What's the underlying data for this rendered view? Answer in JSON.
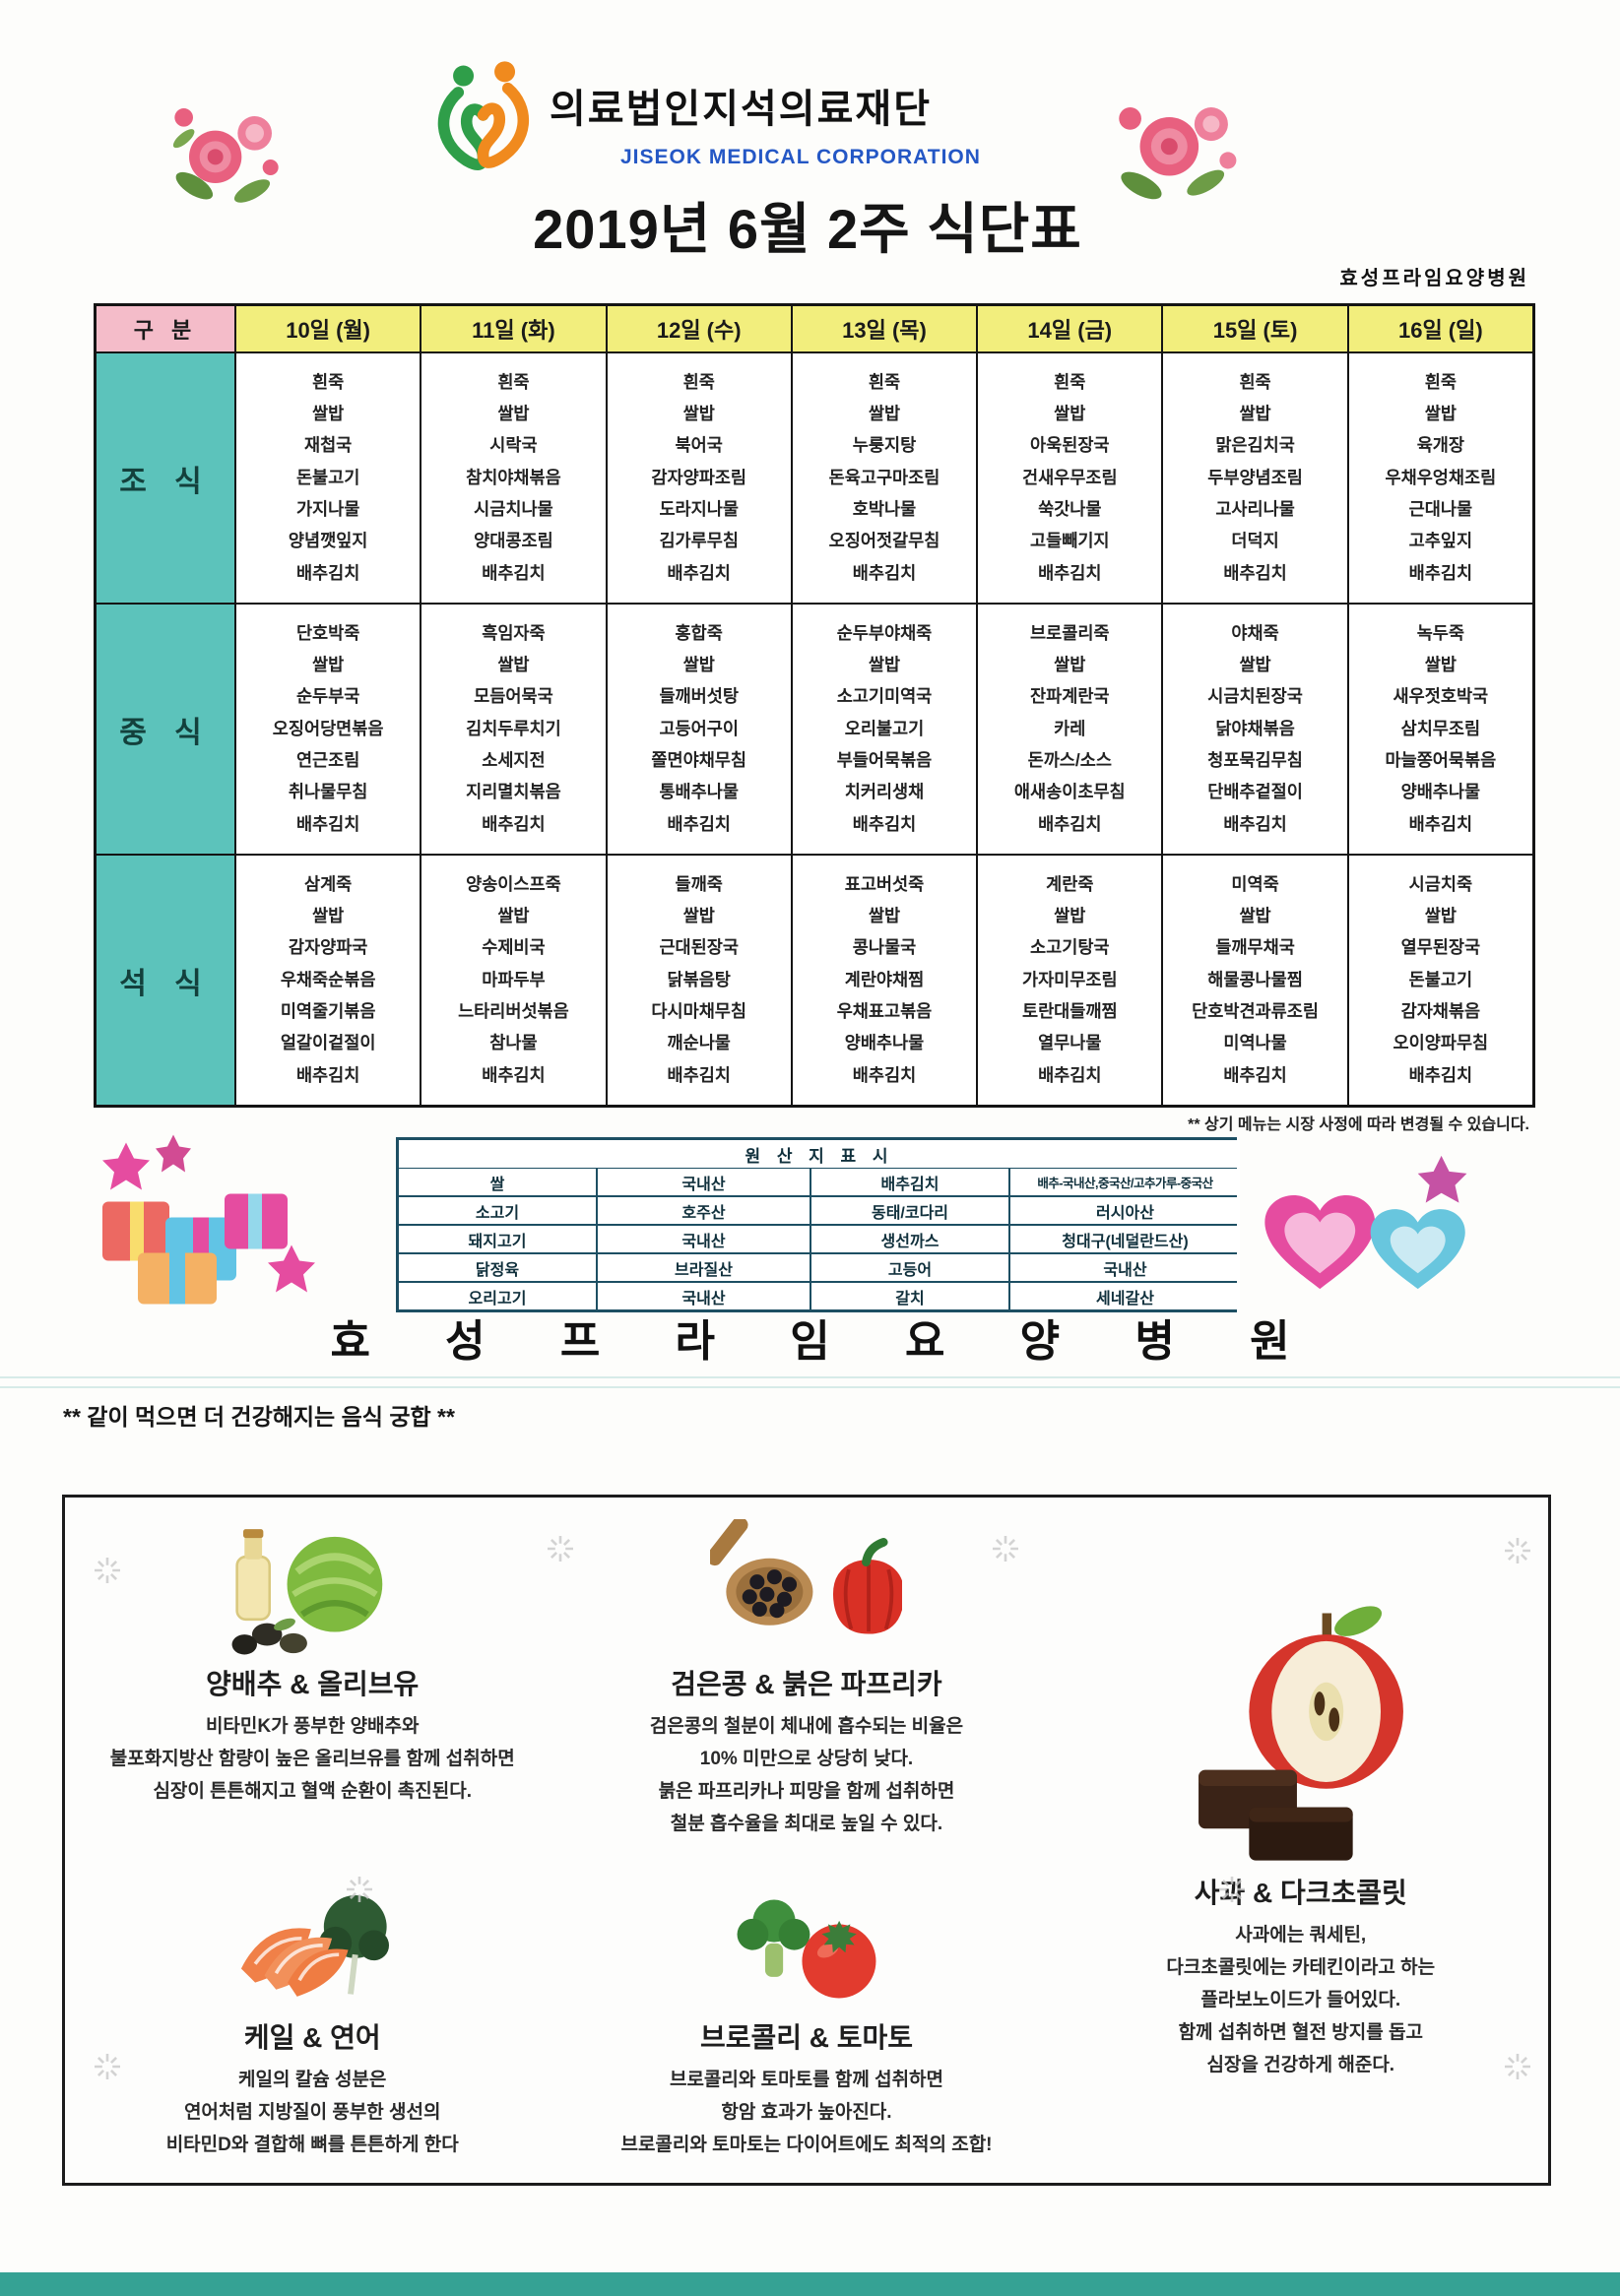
{
  "header": {
    "org_name": "의료법인지석의료재단",
    "org_name_en": "JISEOK MEDICAL CORPORATION",
    "title": "2019년 6월 2주 식단표",
    "hospital_label": "효성프라임요양병원"
  },
  "menu": {
    "corner": "구 분",
    "day_headers": [
      "10일 (월)",
      "11일 (화)",
      "12일 (수)",
      "13일 (목)",
      "14일 (금)",
      "15일 (토)",
      "16일 (일)"
    ],
    "rows": [
      {
        "label": "조 식",
        "cols": [
          [
            "흰죽",
            "쌀밥",
            "재첩국",
            "돈불고기",
            "가지나물",
            "양념깻잎지",
            "배추김치"
          ],
          [
            "흰죽",
            "쌀밥",
            "시락국",
            "참치야채볶음",
            "시금치나물",
            "양대콩조림",
            "배추김치"
          ],
          [
            "흰죽",
            "쌀밥",
            "북어국",
            "감자양파조림",
            "도라지나물",
            "김가루무침",
            "배추김치"
          ],
          [
            "흰죽",
            "쌀밥",
            "누룽지탕",
            "돈육고구마조림",
            "호박나물",
            "오징어젓갈무침",
            "배추김치"
          ],
          [
            "흰죽",
            "쌀밥",
            "아욱된장국",
            "건새우무조림",
            "쑥갓나물",
            "고들빼기지",
            "배추김치"
          ],
          [
            "흰죽",
            "쌀밥",
            "맑은김치국",
            "두부양념조림",
            "고사리나물",
            "더덕지",
            "배추김치"
          ],
          [
            "흰죽",
            "쌀밥",
            "육개장",
            "우채우엉채조림",
            "근대나물",
            "고추잎지",
            "배추김치"
          ]
        ]
      },
      {
        "label": "중 식",
        "cols": [
          [
            "단호박죽",
            "쌀밥",
            "순두부국",
            "오징어당면볶음",
            "연근조림",
            "취나물무침",
            "배추김치"
          ],
          [
            "흑임자죽",
            "쌀밥",
            "모듬어묵국",
            "김치두루치기",
            "소세지전",
            "지리멸치볶음",
            "배추김치"
          ],
          [
            "홍합죽",
            "쌀밥",
            "들깨버섯탕",
            "고등어구이",
            "쫄면야채무침",
            "통배추나물",
            "배추김치"
          ],
          [
            "순두부야채죽",
            "쌀밥",
            "소고기미역국",
            "오리불고기",
            "부들어묵볶음",
            "치커리생채",
            "배추김치"
          ],
          [
            "브로콜리죽",
            "쌀밥",
            "잔파계란국",
            "카레",
            "돈까스/소스",
            "애새송이초무침",
            "배추김치"
          ],
          [
            "야채죽",
            "쌀밥",
            "시금치된장국",
            "닭야채볶음",
            "청포묵김무침",
            "단배추겉절이",
            "배추김치"
          ],
          [
            "녹두죽",
            "쌀밥",
            "새우젓호박국",
            "삼치무조림",
            "마늘쫑어묵볶음",
            "양배추나물",
            "배추김치"
          ]
        ]
      },
      {
        "label": "석 식",
        "cols": [
          [
            "삼계죽",
            "쌀밥",
            "감자양파국",
            "우채죽순볶음",
            "미역줄기볶음",
            "얼갈이겉절이",
            "배추김치"
          ],
          [
            "양송이스프죽",
            "쌀밥",
            "수제비국",
            "마파두부",
            "느타리버섯볶음",
            "참나물",
            "배추김치"
          ],
          [
            "들깨죽",
            "쌀밥",
            "근대된장국",
            "닭볶음탕",
            "다시마채무침",
            "깨순나물",
            "배추김치"
          ],
          [
            "표고버섯죽",
            "쌀밥",
            "콩나물국",
            "계란야채찜",
            "우채표고볶음",
            "양배추나물",
            "배추김치"
          ],
          [
            "계란죽",
            "쌀밥",
            "소고기탕국",
            "가자미무조림",
            "토란대들깨찜",
            "열무나물",
            "배추김치"
          ],
          [
            "미역죽",
            "쌀밥",
            "들깨무채국",
            "해물콩나물찜",
            "단호박견과류조림",
            "미역나물",
            "배추김치"
          ],
          [
            "시금치죽",
            "쌀밥",
            "열무된장국",
            "돈불고기",
            "감자채볶음",
            "오이양파무침",
            "배추김치"
          ]
        ]
      }
    ],
    "footnote": "** 상기 메뉴는 시장 사정에 따라 변경될 수 있습니다."
  },
  "origin": {
    "title": "원 산 지 표 시",
    "rows": [
      [
        "쌀",
        "국내산",
        "배추김치",
        "배추-국내산,중국산/고추가루-중국산"
      ],
      [
        "소고기",
        "호주산",
        "동태/코다리",
        "러시아산"
      ],
      [
        "돼지고기",
        "국내산",
        "생선까스",
        "청대구(네덜란드산)"
      ],
      [
        "닭정육",
        "브라질산",
        "고등어",
        "국내산"
      ],
      [
        "오리고기",
        "국내산",
        "갈치",
        "세네갈산"
      ]
    ]
  },
  "banner": {
    "text": "효 성 프 라 임 요 양 병 원"
  },
  "pairing": {
    "heading": "** 같이 먹으면 더 건강해지는 음식 궁합 **",
    "cards": [
      {
        "title": "양배추 & 올리브유",
        "lines": [
          "비타민K가 풍부한 양배추와",
          "불포화지방산 함량이 높은 올리브유를 함께 섭취하면",
          "심장이 튼튼해지고 혈액 순환이 촉진된다."
        ]
      },
      {
        "title": "검은콩 & 붉은 파프리카",
        "lines": [
          "검은콩의 철분이 체내에 흡수되는 비율은",
          "10% 미만으로 상당히 낮다.",
          "붉은 파프리카나 피망을 함께 섭취하면",
          "철분 흡수율을 최대로 높일 수 있다."
        ]
      },
      {
        "title": "사과 & 다크초콜릿",
        "lines": [
          "사과에는 쿼세틴,",
          "다크초콜릿에는 카테킨이라고 하는",
          "플라보노이드가 들어있다.",
          "함께 섭취하면 혈전 방지를 돕고",
          "심장을 건강하게 해준다."
        ]
      },
      {
        "title": "케일 & 연어",
        "lines": [
          "케일의 칼슘 성분은",
          "연어처럼 지방질이 풍부한 생선의",
          "비타민D와 결합해 뼈를 튼튼하게 한다"
        ]
      },
      {
        "title": "브로콜리 & 토마토",
        "lines": [
          "브로콜리와 토마토를 함께 섭취하면",
          "항암 효과가 높아진다.",
          "브로콜리와 토마토는 다이어트에도 최적의 조합!"
        ]
      }
    ]
  },
  "colors": {
    "day_header_bg": "#f2ee7d",
    "corner_bg": "#f4bcc9",
    "meal_label_bg": "#5cc3bb",
    "origin_border": "#1d4f63",
    "logo_green": "#2f9e49",
    "logo_orange": "#f08a1e",
    "org_en_blue": "#2457c5",
    "bottom_bar": "#35a294"
  }
}
